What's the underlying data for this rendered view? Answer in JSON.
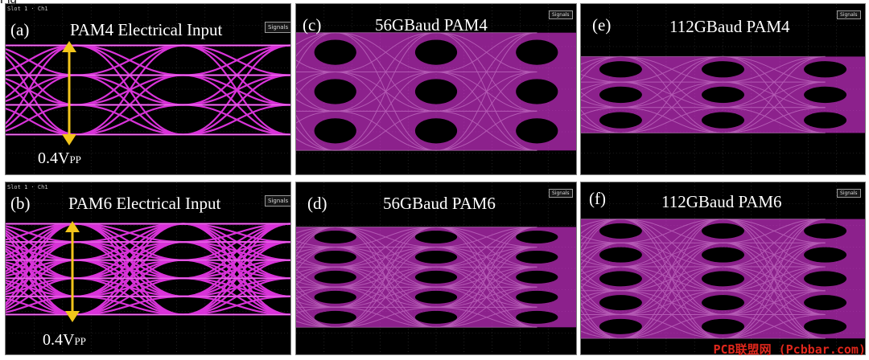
{
  "page": {
    "top_fragment": "Fig"
  },
  "panels": {
    "a": {
      "label": "(a)",
      "title": "PAM4 Electrical Input",
      "vpp_main": "0.4V",
      "vpp_sub": "PP",
      "button": "Signals",
      "strip_text": "Slot 1 · Ch1"
    },
    "b": {
      "label": "(b)",
      "title": "PAM6 Electrical Input",
      "vpp_main": "0.4V",
      "vpp_sub": "PP",
      "button": "Signals",
      "strip_text": "Slot 1 · Ch1"
    },
    "c": {
      "label": "(c)",
      "title": "56GBaud PAM4",
      "button": "Signals"
    },
    "d": {
      "label": "(d)",
      "title": "56GBaud PAM6",
      "button": "Signals"
    },
    "e": {
      "label": "(e)",
      "title": "112GBaud PAM4",
      "button": "Signals"
    },
    "f": {
      "label": "(f)",
      "title": "112GBaud PAM6",
      "button": "Signals"
    }
  },
  "watermark": "PCB联盟网 (Pcbbar.com)",
  "colors": {
    "trace": "#ff3cff",
    "trace_bright": "#ffc4ff",
    "arrow": "#f2c51b",
    "watermark": "#e0271c"
  }
}
